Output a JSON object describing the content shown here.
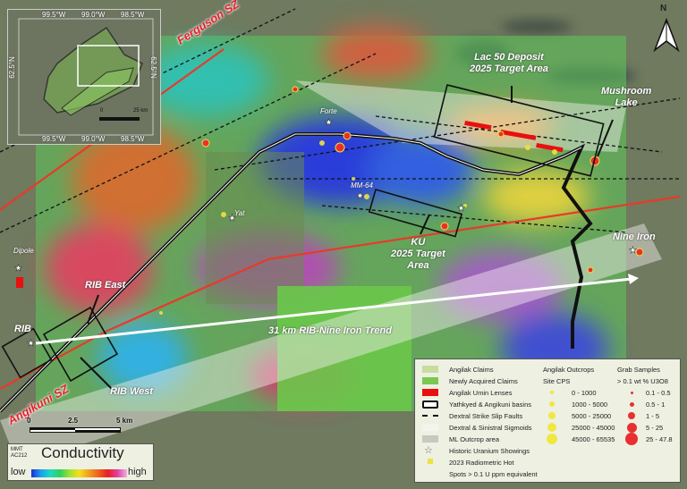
{
  "map": {
    "labels": {
      "lac50": "Lac 50 Deposit",
      "lac50_sub": "2025 Target Area",
      "mushroom": "Mushroom",
      "mushroom_sub": "Lake",
      "ku": "KU",
      "ku_sub1": "2025 Target",
      "ku_sub2": "Area",
      "nine_iron": "Nine Iron",
      "trend": "31 km RIB-Nine Iron Trend",
      "rib": "RIB",
      "rib_east": "RIB East",
      "rib_west": "RIB West",
      "dipole": "Dipole",
      "forte": "Forte",
      "mm64": "MM-64",
      "yat": "Yat",
      "ferguson": "Ferguson SZ",
      "angikuni": "Angikuni SZ"
    },
    "north_arrow": "N",
    "scale_bar": {
      "ticks": [
        "0",
        "2.5",
        "5 km"
      ]
    }
  },
  "inset": {
    "lon_top": [
      "99.5°W",
      "99.0°W",
      "98.5°W"
    ],
    "lon_bottom": [
      "99.5°W",
      "99.0°W",
      "98.5°W"
    ],
    "lat_left": "62.5°N",
    "lat_right": "62.5°N",
    "scale": [
      "0",
      "25 km"
    ]
  },
  "conductivity": {
    "source1": "MMT",
    "source2": "AC212",
    "title": "Conductivity",
    "low": "low",
    "high": "high",
    "ramp": [
      "#1a2fd0",
      "#1aa0f0",
      "#20d8c0",
      "#30d060",
      "#a0e030",
      "#f0e020",
      "#f0a020",
      "#f06020",
      "#e82020",
      "#e040a0",
      "#f0b0e0"
    ]
  },
  "legend": {
    "items": [
      {
        "label": "Angilak Claims",
        "color": "#c8dca0"
      },
      {
        "label": "Newly Acquired Claims",
        "color": "#7ac850"
      },
      {
        "label": "Angilak Umin Lenses",
        "color": "#e81010"
      },
      {
        "label": "Yathkyed & Angikuni basins",
        "color": "#ffffff"
      },
      {
        "label": "Dextral Strike Slip Faults",
        "color": "#000000"
      },
      {
        "label": "Dextral & Sinistral Sigmoids",
        "color": "#f4f4ec"
      },
      {
        "label": "ML Outcrop area",
        "color": "#c8c8c0"
      },
      {
        "label": "Historic Uranium Showings",
        "icon": "star-icon"
      },
      {
        "label": "2023 Radiometric Hot",
        "color": "#f0e040"
      },
      {
        "label": "Spots > 0.1 U ppm equivalent"
      }
    ],
    "outcrops_title": "Angilak Outcrops",
    "outcrops_sub": "Site CPS",
    "outcrops": [
      "0 - 1000",
      "1000 - 5000",
      "5000 - 25000",
      "25000 - 45000",
      "45000 - 65535"
    ],
    "outcrop_color": "#f0e840",
    "grab_title": "Grab Samples",
    "grab_sub": "> 0.1 wt % U3O8",
    "grab": [
      "0.1 - 0.5",
      "0.5 - 1",
      "1 - 5",
      "5 - 25",
      "25 - 47.8"
    ],
    "grab_color": "#e83030"
  }
}
